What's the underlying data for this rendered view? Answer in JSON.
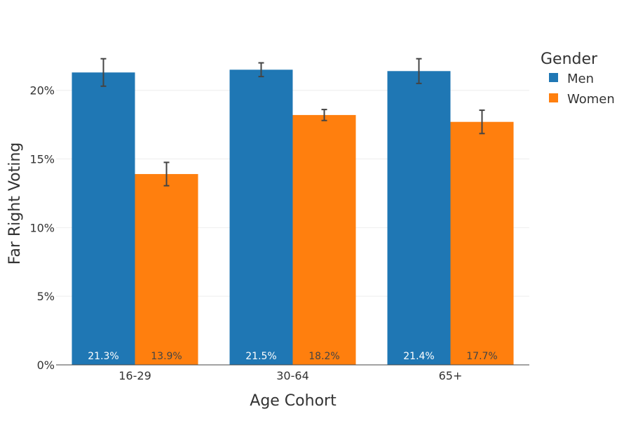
{
  "chart_data": {
    "type": "bar",
    "xlabel": "Age Cohort",
    "ylabel": "Far Right Voting",
    "categories": [
      "16-29",
      "30-64",
      "65+"
    ],
    "ylim": [
      0,
      23
    ],
    "yticks": [
      0,
      5,
      10,
      15,
      20
    ],
    "ytick_labels": [
      "0%",
      "5%",
      "10%",
      "15%",
      "20%"
    ],
    "grid": true,
    "legend": {
      "title": "Gender",
      "position": "top-right"
    },
    "series": [
      {
        "name": "Men",
        "color": "#1f77b4",
        "values": [
          21.3,
          21.5,
          21.4
        ],
        "error": [
          1.0,
          0.5,
          0.9
        ],
        "labels": [
          "21.3%",
          "21.5%",
          "21.4%"
        ],
        "label_color": "#ffffff"
      },
      {
        "name": "Women",
        "color": "#ff7f0e",
        "values": [
          13.9,
          18.2,
          17.7
        ],
        "error": [
          0.85,
          0.4,
          0.85
        ],
        "labels": [
          "13.9%",
          "18.2%",
          "17.7%"
        ],
        "label_color": "#444444"
      }
    ]
  }
}
